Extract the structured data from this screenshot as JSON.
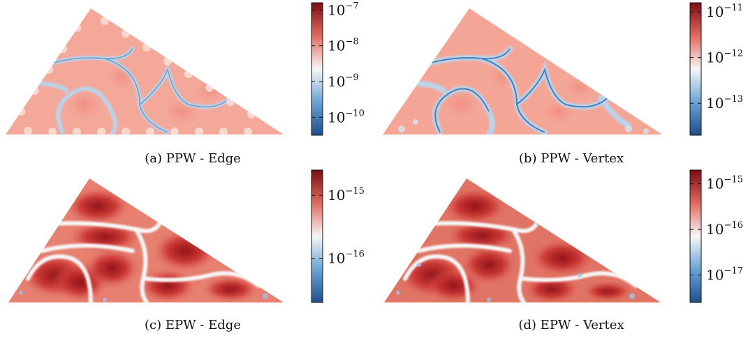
{
  "palette": {
    "dark_blue": "#1f4e8c",
    "mid_blue": "#6aa3d6",
    "white": "#f7f7f7",
    "mid_red": "#e06a5e",
    "dark_red": "#7a0c12"
  },
  "chart_data": [
    {
      "type": "heatmap",
      "caption": "(a) PPW - Edge",
      "scale": "log",
      "colorbar": {
        "range_exponents": [
          -10.5,
          -6.8
        ],
        "ticks": [
          {
            "exp": -7,
            "label_base": "10",
            "label_exp": "−7"
          },
          {
            "exp": -8,
            "label_base": "10",
            "label_exp": "−8"
          },
          {
            "exp": -9,
            "label_base": "10",
            "label_exp": "−9"
          },
          {
            "exp": -10,
            "label_base": "10",
            "label_exp": "−10"
          }
        ]
      }
    },
    {
      "type": "heatmap",
      "caption": "(b) PPW - Vertex",
      "scale": "log",
      "colorbar": {
        "range_exponents": [
          -13.7,
          -10.8
        ],
        "ticks": [
          {
            "exp": -11,
            "label_base": "10",
            "label_exp": "−11"
          },
          {
            "exp": -12,
            "label_base": "10",
            "label_exp": "−12"
          },
          {
            "exp": -13,
            "label_base": "10",
            "label_exp": "−13"
          }
        ]
      }
    },
    {
      "type": "heatmap",
      "caption": "(c) EPW - Edge",
      "scale": "log",
      "colorbar": {
        "range_exponents": [
          -16.7,
          -14.6
        ],
        "ticks": [
          {
            "exp": -15,
            "label_base": "10",
            "label_exp": "−15"
          },
          {
            "exp": -16,
            "label_base": "10",
            "label_exp": "−16"
          }
        ]
      }
    },
    {
      "type": "heatmap",
      "caption": "(d) EPW - Vertex",
      "scale": "log",
      "colorbar": {
        "range_exponents": [
          -17.6,
          -14.7
        ],
        "ticks": [
          {
            "exp": -15,
            "label_base": "10",
            "label_exp": "−15"
          },
          {
            "exp": -16,
            "label_base": "10",
            "label_exp": "−16"
          },
          {
            "exp": -17,
            "label_base": "10",
            "label_exp": "−17"
          }
        ]
      }
    }
  ]
}
